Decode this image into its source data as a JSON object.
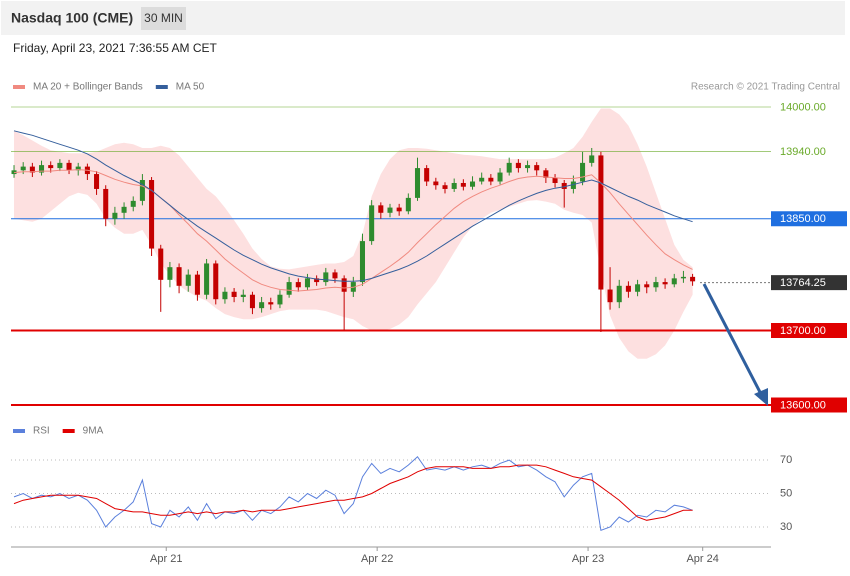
{
  "header": {
    "title": "Nasdaq 100 (CME)",
    "timeframe": "30 MIN",
    "timestamp": "Friday, April 23, 2021 7:36:55 AM CET",
    "credit": "Research © 2021 Trading Central"
  },
  "chart_data": [
    {
      "type": "candlestick",
      "xlim": [
        -0.33,
        82.55
      ],
      "ylim": [
        13580,
        14070
      ],
      "xticks": [
        {
          "value": 16.6,
          "label": "Apr 21"
        },
        {
          "value": 39.6,
          "label": "Apr 22"
        },
        {
          "value": 62.6,
          "label": "Apr 23"
        },
        {
          "value": 75.1,
          "label": "Apr 24"
        }
      ],
      "up_color": "#2e8b2e",
      "down_color": "#c40000",
      "open": [
        13910,
        13915,
        13920,
        13912,
        13922,
        13918,
        13925,
        13915,
        13920,
        13910,
        13890,
        13850,
        13858,
        13866,
        13874,
        13902,
        13810,
        13768,
        13785,
        13760,
        13775,
        13748,
        13790,
        13742,
        13752,
        13745,
        13748,
        13730,
        13738,
        13735,
        13748,
        13765,
        13758,
        13770,
        13765,
        13778,
        13770,
        13752,
        13765,
        13820,
        13868,
        13858,
        13865,
        13860,
        13878,
        13918,
        13900,
        13895,
        13890,
        13898,
        13893,
        13900,
        13905,
        13900,
        13912,
        13925,
        13918,
        13922,
        13915,
        13905,
        13898,
        13890,
        13900,
        13925,
        13935,
        13755,
        13738,
        13760,
        13752,
        13762,
        13758,
        13765,
        13762,
        13770,
        13772
      ],
      "high": [
        13922,
        13926,
        13925,
        13928,
        13927,
        13930,
        13929,
        13925,
        13924,
        13914,
        13895,
        13866,
        13872,
        13880,
        13910,
        13906,
        13815,
        13792,
        13790,
        13782,
        13780,
        13796,
        13794,
        13758,
        13757,
        13755,
        13752,
        13745,
        13744,
        13754,
        13772,
        13770,
        13776,
        13774,
        13784,
        13782,
        13774,
        13772,
        13830,
        13875,
        13872,
        13870,
        13870,
        13884,
        13932,
        13922,
        13905,
        13899,
        13904,
        13903,
        13907,
        13912,
        13910,
        13918,
        13932,
        13930,
        13928,
        13926,
        13918,
        13910,
        13902,
        13908,
        13940,
        13945,
        13940,
        13785,
        13768,
        13766,
        13768,
        13766,
        13772,
        13770,
        13776,
        13780,
        13776
      ],
      "low": [
        13905,
        13910,
        13906,
        13908,
        13912,
        13914,
        13910,
        13908,
        13902,
        13882,
        13840,
        13842,
        13850,
        13860,
        13868,
        13800,
        13725,
        13758,
        13750,
        13752,
        13740,
        13742,
        13735,
        13736,
        13738,
        13738,
        13722,
        13724,
        13728,
        13730,
        13744,
        13752,
        13754,
        13760,
        13760,
        13764,
        13700,
        13745,
        13760,
        13815,
        13850,
        13852,
        13854,
        13856,
        13874,
        13894,
        13889,
        13884,
        13886,
        13888,
        13889,
        13896,
        13895,
        13896,
        13908,
        13912,
        13912,
        13908,
        13898,
        13892,
        13865,
        13884,
        13895,
        13920,
        13698,
        13728,
        13730,
        13744,
        13746,
        13750,
        13752,
        13756,
        13758,
        13764,
        13760
      ],
      "close": [
        13915,
        13920,
        13912,
        13922,
        13918,
        13925,
        13915,
        13920,
        13910,
        13890,
        13850,
        13858,
        13866,
        13874,
        13902,
        13810,
        13768,
        13785,
        13760,
        13775,
        13748,
        13790,
        13742,
        13752,
        13745,
        13748,
        13730,
        13738,
        13735,
        13748,
        13765,
        13758,
        13770,
        13765,
        13778,
        13770,
        13752,
        13765,
        13820,
        13868,
        13858,
        13865,
        13860,
        13878,
        13918,
        13900,
        13895,
        13890,
        13898,
        13893,
        13900,
        13905,
        13900,
        13912,
        13925,
        13918,
        13922,
        13915,
        13905,
        13898,
        13890,
        13900,
        13925,
        13935,
        13755,
        13738,
        13760,
        13752,
        13762,
        13758,
        13765,
        13762,
        13770,
        13772,
        13766
      ],
      "series": [
        {
          "name": "MA 20 + Bollinger Bands",
          "color": "#f08a80",
          "band_color": "#fde0e0",
          "values": [
            13912,
            13913,
            13913,
            13914,
            13914,
            13915,
            13915,
            13916,
            13915,
            13913,
            13908,
            13903,
            13899,
            13896,
            13894,
            13888,
            13878,
            13868,
            13855,
            13843,
            13830,
            13820,
            13808,
            13796,
            13786,
            13777,
            13768,
            13762,
            13758,
            13755,
            13754,
            13753,
            13754,
            13755,
            13757,
            13758,
            13757,
            13758,
            13762,
            13770,
            13778,
            13786,
            13795,
            13805,
            13818,
            13830,
            13842,
            13853,
            13864,
            13873,
            13880,
            13886,
            13891,
            13895,
            13900,
            13904,
            13906,
            13907,
            13906,
            13905,
            13904,
            13904,
            13906,
            13909,
            13898,
            13885,
            13870,
            13856,
            13842,
            13828,
            13815,
            13803,
            13795,
            13788,
            13782
          ],
          "upper": [
            13968,
            13962,
            13955,
            13948,
            13942,
            13940,
            13938,
            13938,
            13938,
            13940,
            13945,
            13950,
            13952,
            13950,
            13945,
            13945,
            13948,
            13945,
            13935,
            13920,
            13905,
            13890,
            13880,
            13865,
            13848,
            13830,
            13810,
            13796,
            13786,
            13783,
            13782,
            13784,
            13786,
            13788,
            13790,
            13790,
            13792,
            13800,
            13830,
            13880,
            13910,
            13930,
            13942,
            13945,
            13945,
            13944,
            13942,
            13940,
            13938,
            13936,
            13935,
            13934,
            13932,
            13930,
            13930,
            13930,
            13930,
            13930,
            13930,
            13932,
            13938,
            13945,
            13960,
            13980,
            13998,
            13998,
            13990,
            13975,
            13950,
            13920,
            13885,
            13850,
            13815,
            13795,
            13785
          ],
          "lower": [
            13850,
            13848,
            13846,
            13850,
            13860,
            13870,
            13880,
            13885,
            13882,
            13870,
            13850,
            13838,
            13830,
            13830,
            13835,
            13815,
            13790,
            13775,
            13760,
            13752,
            13745,
            13740,
            13730,
            13722,
            13718,
            13715,
            13715,
            13718,
            13722,
            13726,
            13728,
            13728,
            13728,
            13728,
            13726,
            13722,
            13718,
            13715,
            13706,
            13700,
            13700,
            13702,
            13708,
            13718,
            13735,
            13750,
            13765,
            13785,
            13805,
            13825,
            13840,
            13850,
            13858,
            13862,
            13866,
            13870,
            13874,
            13875,
            13873,
            13870,
            13862,
            13858,
            13855,
            13845,
            13780,
            13720,
            13690,
            13672,
            13662,
            13662,
            13668,
            13680,
            13700,
            13725,
            13748
          ]
        },
        {
          "name": "MA 50",
          "color": "#355f9c",
          "values": [
            13968,
            13965,
            13962,
            13958,
            13954,
            13950,
            13946,
            13942,
            13937,
            13930,
            13922,
            13915,
            13908,
            13902,
            13896,
            13888,
            13878,
            13868,
            13858,
            13849,
            13840,
            13832,
            13824,
            13816,
            13808,
            13801,
            13795,
            13789,
            13784,
            13780,
            13776,
            13773,
            13771,
            13769,
            13768,
            13767,
            13766,
            13766,
            13767,
            13770,
            13774,
            13778,
            13782,
            13787,
            13793,
            13800,
            13808,
            13816,
            13824,
            13832,
            13840,
            13847,
            13854,
            13861,
            13868,
            13874,
            13879,
            13884,
            13888,
            13891,
            13893,
            13896,
            13899,
            13902,
            13898,
            13892,
            13886,
            13880,
            13875,
            13869,
            13864,
            13859,
            13854,
            13850,
            13846
          ]
        }
      ],
      "levels": [
        {
          "value": 14000,
          "label": "14000.00",
          "color": "#6aaa2a",
          "filled": false,
          "width": 0.6,
          "dash": false
        },
        {
          "value": 13940,
          "label": "13940.00",
          "color": "#6aaa2a",
          "filled": false,
          "width": 0.6,
          "dash": false
        },
        {
          "value": 13850,
          "label": "13850.00",
          "color": "#1f6fe0",
          "filled": true,
          "width": 1,
          "dash": false
        },
        {
          "value": 13764.25,
          "label": "13764.25",
          "color": "#333333",
          "filled": true,
          "width": 1,
          "dash": true
        },
        {
          "value": 13700,
          "label": "13700.00",
          "color": "#e00000",
          "filled": true,
          "width": 2,
          "dash": false
        },
        {
          "value": 13600,
          "label": "13600.00",
          "color": "#e00000",
          "filled": true,
          "width": 2,
          "dash": false
        }
      ]
    },
    {
      "type": "line",
      "xlim": [
        -0.33,
        82.55
      ],
      "ylim": [
        19,
        79
      ],
      "yticks": [
        30,
        50,
        70
      ],
      "grid": true,
      "series": [
        {
          "name": "RSI",
          "color": "#5b80dc",
          "values": [
            48,
            50,
            47,
            49,
            48,
            50,
            47,
            49,
            46,
            40,
            30,
            36,
            40,
            45,
            58,
            32,
            30,
            40,
            36,
            42,
            34,
            44,
            35,
            39,
            38,
            40,
            34,
            40,
            38,
            42,
            48,
            45,
            50,
            47,
            52,
            49,
            38,
            44,
            60,
            68,
            62,
            65,
            63,
            67,
            72,
            64,
            65,
            64,
            66,
            64,
            66,
            67,
            65,
            68,
            70,
            66,
            67,
            64,
            60,
            57,
            48,
            55,
            60,
            62,
            28,
            30,
            36,
            33,
            37,
            36,
            40,
            39,
            43,
            42,
            40
          ]
        },
        {
          "name": "9MA",
          "color": "#e00000",
          "values": [
            44,
            46,
            47,
            48,
            49,
            49,
            49,
            49,
            48,
            47,
            44,
            41,
            40,
            39,
            39,
            38,
            37,
            37,
            38,
            39,
            38,
            39,
            38,
            39,
            39,
            40,
            39,
            40,
            40,
            40,
            41,
            42,
            43,
            44,
            45,
            46,
            46,
            47,
            48,
            50,
            53,
            56,
            58,
            60,
            63,
            65,
            66,
            66,
            66,
            66,
            65,
            65,
            65,
            66,
            66,
            67,
            67,
            67,
            66,
            64,
            62,
            60,
            59,
            58,
            54,
            50,
            46,
            41,
            36,
            34,
            35,
            36,
            38,
            40,
            40
          ]
        }
      ]
    }
  ]
}
